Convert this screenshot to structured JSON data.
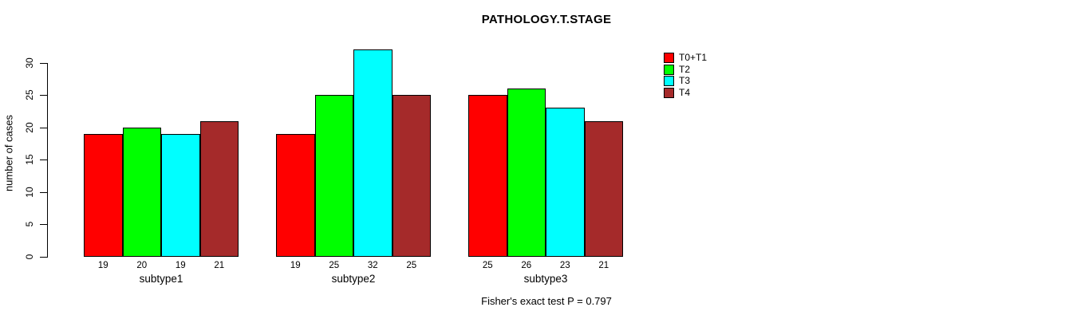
{
  "title": "PATHOLOGY.T.STAGE",
  "annotation": "Fisher's exact test P = 0.797",
  "chart_data": {
    "type": "bar",
    "title": "PATHOLOGY.T.STAGE",
    "xlabel": "",
    "ylabel": "number of cases",
    "categories": [
      "subtype1",
      "subtype2",
      "subtype3"
    ],
    "series": [
      {
        "name": "T0+T1",
        "color": "#FF0000",
        "values": [
          19,
          19,
          25
        ]
      },
      {
        "name": "T2",
        "color": "#00FF00",
        "values": [
          20,
          25,
          26
        ]
      },
      {
        "name": "T3",
        "color": "#00FFFF",
        "values": [
          19,
          32,
          23
        ]
      },
      {
        "name": "T4",
        "color": "#A52A2A",
        "values": [
          21,
          25,
          21
        ]
      }
    ],
    "bar_value_labels": [
      [
        19,
        20,
        19,
        21
      ],
      [
        19,
        25,
        32,
        25
      ],
      [
        25,
        26,
        23,
        21
      ]
    ],
    "yticks": [
      0,
      5,
      10,
      15,
      20,
      25,
      30
    ],
    "ylim": [
      0,
      32
    ],
    "grid": false,
    "legend_position": "top-right",
    "bar_border_color": "#000000",
    "annotation": "Fisher's exact test P = 0.797"
  }
}
